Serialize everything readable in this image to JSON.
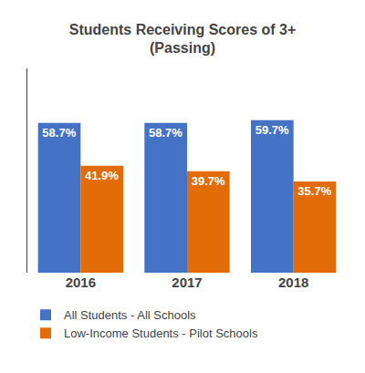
{
  "chart_data": {
    "type": "bar",
    "title": "Students Receiving Scores of 3+\n(Passing)",
    "categories": [
      "2016",
      "2017",
      "2018"
    ],
    "series": [
      {
        "name": "All Students - All Schools",
        "color": "#4472C4",
        "values": [
          58.7,
          58.7,
          59.7
        ],
        "value_labels": [
          "58.7%",
          "58.7%",
          "59.7%"
        ]
      },
      {
        "name": "Low-Income Students - Pilot Schools",
        "color": "#E36C09",
        "values": [
          41.9,
          39.7,
          35.7
        ],
        "value_labels": [
          "41.9%",
          "39.7%",
          "35.7%"
        ]
      }
    ],
    "ylim": [
      0,
      80
    ],
    "grid": false,
    "legend": "lower left",
    "data_labels": true,
    "tick_labels": "x"
  }
}
